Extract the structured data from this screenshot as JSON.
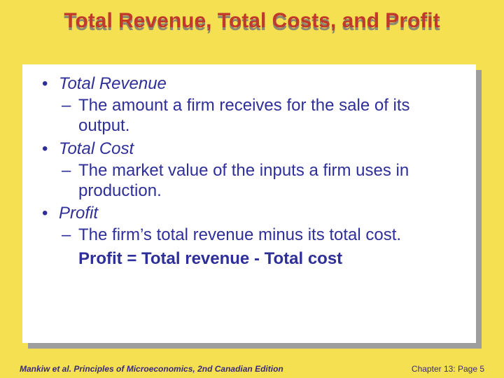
{
  "title": "Total Revenue, Total Costs, and Profit",
  "items": [
    {
      "head": "Total Revenue",
      "body": "The amount a firm receives for the sale of its output."
    },
    {
      "head": "Total Cost",
      "body": "The market value of the inputs a firm uses in production."
    },
    {
      "head": "Profit",
      "body": "The firm’s total revenue minus its total cost."
    }
  ],
  "equation": "Profit = Total revenue - Total cost",
  "footer": {
    "left": "Mankiw et al. Principles of Microeconomics, 2nd Canadian Edition",
    "right": "Chapter 13: Page 5"
  },
  "colors": {
    "page_bg": "#f4e050",
    "box_bg": "#ffffff",
    "shadow": "#9e9e9e",
    "title_main": "#c0392b",
    "title_shadow": "#7a7a7a",
    "body_text": "#2f2f99",
    "footer_text": "#3a2b7a"
  }
}
